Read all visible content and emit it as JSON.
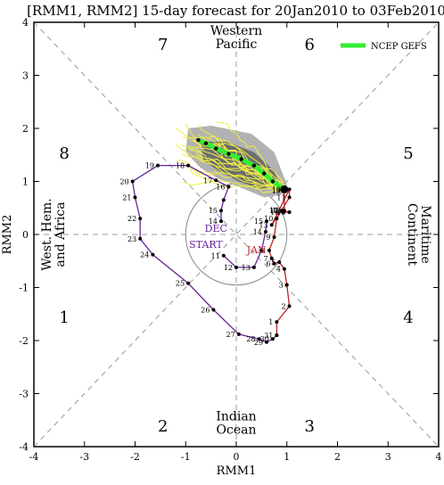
{
  "chart_data": {
    "type": "line",
    "title": "[RMM1, RMM2] 15-day forecast for 20Jan2010 to 03Feb2010",
    "xlabel": "RMM1",
    "ylabel": "RMM2",
    "xlim": [
      -4,
      4
    ],
    "ylim": [
      -4,
      4
    ],
    "xticks": [
      -4,
      -3,
      -2,
      -1,
      0,
      1,
      2,
      3,
      4
    ],
    "yticks": [
      -4,
      -3,
      -2,
      -1,
      0,
      1,
      2,
      3,
      4
    ],
    "octants": [
      {
        "label": "1",
        "x": -3.4,
        "y": -1.55
      },
      {
        "label": "2",
        "x": -1.45,
        "y": -3.6
      },
      {
        "label": "3",
        "x": 1.45,
        "y": -3.6
      },
      {
        "label": "4",
        "x": 3.4,
        "y": -1.55
      },
      {
        "label": "5",
        "x": 3.4,
        "y": 1.55
      },
      {
        "label": "6",
        "x": 1.45,
        "y": 3.6
      },
      {
        "label": "7",
        "x": -1.45,
        "y": 3.6
      },
      {
        "label": "8",
        "x": -3.4,
        "y": 1.55
      }
    ],
    "regions": [
      {
        "lines": [
          "Western",
          "Pacific"
        ],
        "x": 0,
        "y": 3.72,
        "rotate": 0
      },
      {
        "lines": [
          "Indian",
          "Ocean"
        ],
        "x": 0,
        "y": -3.55,
        "rotate": 0
      },
      {
        "lines": [
          "West. Hem.",
          "and Africa"
        ],
        "x": -3.62,
        "y": 0,
        "rotate": -90
      },
      {
        "lines": [
          "Maritime",
          "Continent"
        ],
        "x": 3.62,
        "y": 0,
        "rotate": 90
      }
    ],
    "legend": {
      "label": "NCEP GEFS",
      "color": "#33ee33",
      "position": "top-right"
    },
    "series": [
      {
        "name": "DEC",
        "color": "#662299",
        "points": [
          {
            "x": -0.3,
            "y": 0.25,
            "label": "14"
          },
          {
            "x": -0.3,
            "y": 0.45,
            "label": "15"
          },
          {
            "x": -0.25,
            "y": 0.65,
            "label": ""
          },
          {
            "x": -0.15,
            "y": 0.9,
            "label": "16"
          },
          {
            "x": -0.4,
            "y": 1.02,
            "label": "17"
          },
          {
            "x": -0.95,
            "y": 1.3,
            "label": "18"
          },
          {
            "x": -1.55,
            "y": 1.3,
            "label": "19"
          },
          {
            "x": -2.05,
            "y": 1.0,
            "label": "20"
          },
          {
            "x": -2.0,
            "y": 0.7,
            "label": "21"
          },
          {
            "x": -1.9,
            "y": 0.3,
            "label": "22"
          },
          {
            "x": -1.9,
            "y": -0.08,
            "label": "23"
          },
          {
            "x": -1.65,
            "y": -0.38,
            "label": "24"
          },
          {
            "x": -0.95,
            "y": -0.92,
            "label": "25"
          },
          {
            "x": -0.45,
            "y": -1.42,
            "label": "26"
          },
          {
            "x": 0.05,
            "y": -1.88,
            "label": "27"
          },
          {
            "x": 0.45,
            "y": -1.97,
            "label": "28"
          },
          {
            "x": 0.6,
            "y": -2.03,
            "label": "29"
          },
          {
            "x": 0.72,
            "y": -1.97,
            "label": "30"
          },
          {
            "x": 0.8,
            "y": -1.9,
            "label": "31"
          }
        ]
      },
      {
        "name": "JAN",
        "color": "#bb2222",
        "points": [
          {
            "x": 0.8,
            "y": -1.9,
            "label": ""
          },
          {
            "x": 0.8,
            "y": -1.65,
            "label": "1"
          },
          {
            "x": 1.05,
            "y": -1.35,
            "label": "2"
          },
          {
            "x": 1.0,
            "y": -0.95,
            "label": "3"
          },
          {
            "x": 0.95,
            "y": -0.65,
            "label": "4"
          },
          {
            "x": 0.85,
            "y": -0.52,
            "label": "5"
          },
          {
            "x": 0.75,
            "y": -0.55,
            "label": "6"
          },
          {
            "x": 0.7,
            "y": -0.45,
            "label": "7"
          },
          {
            "x": 0.65,
            "y": -0.3,
            "label": "8"
          },
          {
            "x": 0.75,
            "y": -0.05,
            "label": "9"
          },
          {
            "x": 0.8,
            "y": 0.3,
            "label": "10"
          },
          {
            "x": 1.05,
            "y": 0.7,
            "label": "11"
          },
          {
            "x": 1.05,
            "y": 0.85,
            "label": "12"
          },
          {
            "x": 0.7,
            "y": 0.18,
            "label": "13"
          },
          {
            "x": 0.9,
            "y": 0.45,
            "label": "14"
          },
          {
            "x": 1.05,
            "y": 0.42,
            "label": "15"
          },
          {
            "x": 0.92,
            "y": 0.42,
            "label": "16"
          },
          {
            "x": 0.9,
            "y": 0.45,
            "label": "17"
          },
          {
            "x": 0.95,
            "y": 0.45,
            "label": "18"
          },
          {
            "x": 0.95,
            "y": 0.82,
            "label": "19"
          }
        ]
      },
      {
        "name": "START",
        "color": "#662299",
        "points": [
          {
            "x": -0.25,
            "y": -0.4,
            "label": "11"
          },
          {
            "x": 0.0,
            "y": -0.62,
            "label": "12"
          },
          {
            "x": 0.35,
            "y": -0.62,
            "label": "13"
          },
          {
            "x": 0.5,
            "y": -0.3,
            "label": ""
          },
          {
            "x": 0.58,
            "y": 0.05,
            "label": "14"
          },
          {
            "x": 0.6,
            "y": 0.25,
            "label": "15"
          }
        ]
      },
      {
        "name": "NCEP GEFS",
        "color": "#33ee33",
        "points": [
          {
            "x": 0.95,
            "y": 0.85,
            "label": "19"
          },
          {
            "x": 0.72,
            "y": 1.0,
            "label": ""
          },
          {
            "x": 0.55,
            "y": 1.15,
            "label": ""
          },
          {
            "x": 0.35,
            "y": 1.3,
            "label": ""
          },
          {
            "x": 0.1,
            "y": 1.42,
            "label": ""
          },
          {
            "x": -0.15,
            "y": 1.52,
            "label": ""
          },
          {
            "x": -0.4,
            "y": 1.62,
            "label": ""
          },
          {
            "x": -0.6,
            "y": 1.72,
            "label": ""
          },
          {
            "x": -0.75,
            "y": 1.78,
            "label": ""
          }
        ]
      }
    ],
    "series_labels": [
      {
        "text": "DEC",
        "x": -0.4,
        "y": 0.05,
        "color": "#662299"
      },
      {
        "text": "START",
        "x": -0.6,
        "y": -0.25,
        "color": "#662299"
      },
      {
        "text": "JAN",
        "x": 0.4,
        "y": -0.35,
        "color": "#bb2222"
      }
    ]
  }
}
